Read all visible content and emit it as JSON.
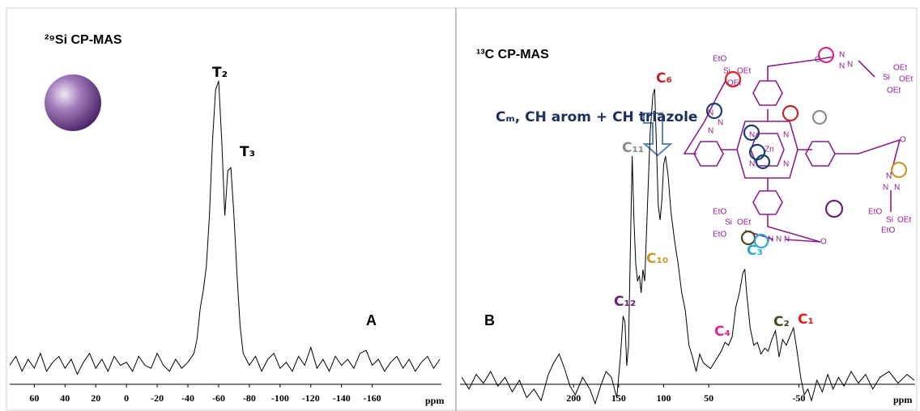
{
  "chart_data": [
    {
      "type": "line",
      "title": "²⁹Si CP-MAS",
      "panel_label": "A",
      "x_label": "ppm",
      "color": "#000000",
      "xlim": [
        76,
        -205
      ],
      "ylim": [
        0,
        100
      ],
      "xticks": [
        60,
        40,
        20,
        0,
        -20,
        -40,
        -60,
        -80,
        -100,
        -120,
        -140,
        -160
      ],
      "x": [
        76,
        72,
        68,
        64,
        60,
        56,
        52,
        48,
        44,
        40,
        36,
        32,
        28,
        24,
        20,
        16,
        12,
        8,
        4,
        0,
        -4,
        -8,
        -12,
        -16,
        -20,
        -24,
        -28,
        -32,
        -36,
        -40,
        -44,
        -46,
        -48,
        -50,
        -52,
        -54,
        -56,
        -58,
        -60,
        -62,
        -64,
        -66,
        -68,
        -70,
        -72,
        -74,
        -76,
        -80,
        -84,
        -88,
        -92,
        -96,
        -100,
        -104,
        -108,
        -112,
        -116,
        -120,
        -124,
        -128,
        -132,
        -136,
        -140,
        -144,
        -148,
        -152,
        -156,
        -160,
        -164,
        -168,
        -172,
        -176,
        -180,
        -184,
        -188,
        -192,
        -196,
        -200,
        -204
      ],
      "values": [
        5,
        8,
        3,
        7,
        4,
        9,
        3,
        6,
        8,
        4,
        7,
        2,
        6,
        9,
        4,
        7,
        3,
        8,
        5,
        6,
        3,
        8,
        5,
        4,
        9,
        5,
        3,
        7,
        4,
        6,
        9,
        14,
        24,
        30,
        38,
        55,
        80,
        97,
        100,
        80,
        55,
        70,
        71,
        55,
        35,
        18,
        9,
        5,
        8,
        3,
        7,
        9,
        4,
        6,
        3,
        8,
        5,
        11,
        4,
        7,
        3,
        8,
        5,
        7,
        4,
        9,
        10,
        5,
        7,
        3,
        6,
        8,
        4,
        7,
        3,
        6,
        8,
        4,
        7
      ],
      "annotations": [
        {
          "text": "T₂",
          "color": "#000000"
        },
        {
          "text": "T₃",
          "color": "#000000"
        }
      ]
    },
    {
      "type": "line",
      "title": "¹³C CP-MAS",
      "panel_label": "B",
      "x_label": "ppm",
      "color": "#000000",
      "xlim": [
        326,
        -179
      ],
      "ylim": [
        -10,
        100
      ],
      "xticks": [
        200,
        150,
        100,
        50,
        -50
      ],
      "x": [
        324,
        316,
        308,
        300,
        292,
        284,
        276,
        268,
        260,
        252,
        244,
        236,
        228,
        222,
        216,
        210,
        204,
        198,
        190,
        182,
        176,
        170,
        164,
        158,
        152,
        148,
        145,
        143,
        141,
        139,
        136,
        135,
        133,
        131,
        129,
        127,
        125,
        123,
        121,
        118,
        115,
        112,
        110,
        108,
        106,
        104,
        102,
        100,
        98,
        95,
        92,
        88,
        84,
        80,
        76,
        72,
        68,
        64,
        60,
        56,
        52,
        48,
        44,
        40,
        36,
        32,
        28,
        24,
        20,
        16,
        12,
        10,
        8,
        4,
        0,
        -4,
        -8,
        -12,
        -16,
        -20,
        -24,
        -28,
        -32,
        -36,
        -40,
        -44,
        -48,
        -52,
        -56,
        -60,
        -64,
        -70,
        -76,
        -82,
        -88,
        -94,
        -100,
        -108,
        -116,
        -124,
        -132,
        -140,
        -150,
        -160,
        -170,
        -178
      ],
      "values": [
        1,
        -3,
        2,
        -1,
        3,
        -2,
        1,
        -4,
        0,
        -6,
        -3,
        -7,
        2,
        6,
        9,
        4,
        -2,
        -5,
        1,
        -3,
        -8,
        -2,
        3,
        1,
        -6,
        8,
        22,
        20,
        5,
        12,
        60,
        77,
        55,
        40,
        34,
        36,
        30,
        38,
        34,
        60,
        85,
        98,
        100,
        80,
        60,
        55,
        62,
        74,
        77,
        70,
        58,
        48,
        40,
        30,
        24,
        12,
        8,
        3,
        9,
        6,
        5,
        4,
        6,
        8,
        10,
        13,
        12,
        15,
        25,
        30,
        37,
        38,
        30,
        18,
        12,
        13,
        9,
        11,
        10,
        14,
        17,
        8,
        14,
        12,
        15,
        18,
        10,
        1,
        -5,
        -3,
        -7,
        0,
        -4,
        2,
        -3,
        1,
        -2,
        3,
        -1,
        2,
        -3,
        1,
        3,
        -1,
        2,
        0
      ],
      "annotations": [
        {
          "text": "C₆",
          "color": "#c0282d"
        },
        {
          "text": "C₁₁",
          "color": "#8c8c8c"
        },
        {
          "text": "C₁₀",
          "color": "#c89a2a"
        },
        {
          "text": "C₁₂",
          "color": "#6a2372"
        },
        {
          "text": "C₃",
          "color": "#2aa7d6"
        },
        {
          "text": "C₄",
          "color": "#e0288a"
        },
        {
          "text": "C₂",
          "color": "#4a4a20"
        },
        {
          "text": "C₁",
          "color": "#e02020"
        },
        {
          "text": "Cₘ, CH arom + CH triazole",
          "color": "#1c2f5e"
        }
      ]
    }
  ],
  "molecule": {
    "labels": [
      "EtO",
      "Si",
      "OEt",
      "OEt",
      "N",
      "N",
      "N",
      "O",
      "N",
      "N",
      "N",
      "Si",
      "OEt",
      "OEt",
      "OEt",
      "Zn",
      "N",
      "N",
      "N",
      "N",
      "O",
      "N",
      "N",
      "N",
      "EtO",
      "Si",
      "OEt",
      "EtO",
      "EtO",
      "Si",
      "OEt",
      "EtO",
      "N",
      "N",
      "N",
      "O"
    ]
  }
}
